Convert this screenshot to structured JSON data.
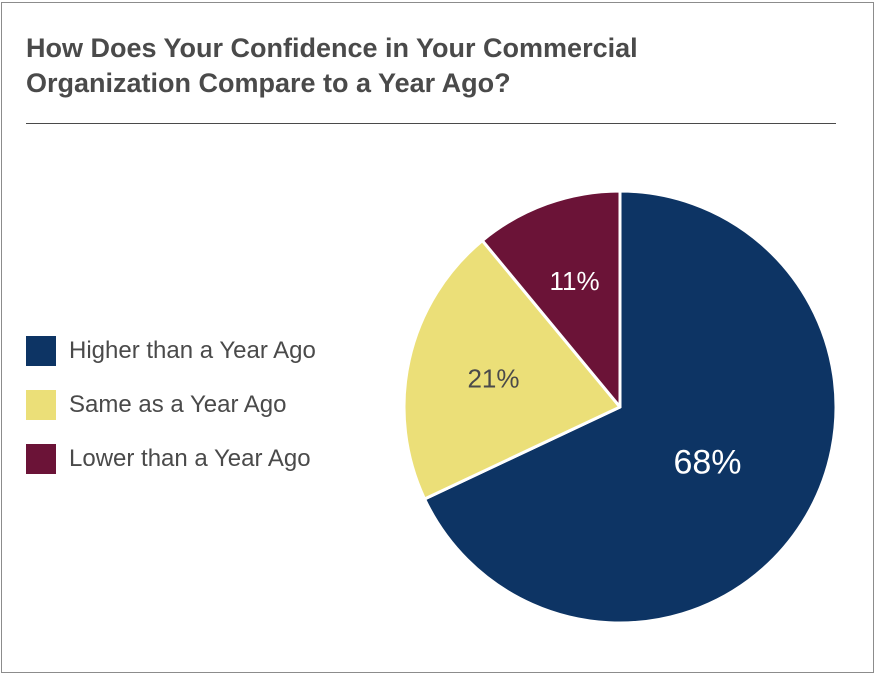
{
  "chart_data": {
    "type": "pie",
    "title": "How Does Your Confidence in Your Commercial Organization Compare to a Year Ago?",
    "slices": [
      {
        "label": "Higher than a Year Ago",
        "value": 68,
        "value_label": "68%",
        "color": "#0d3464",
        "label_color": "#ffffff"
      },
      {
        "label": "Same as a Year Ago",
        "value": 21,
        "value_label": "21%",
        "color": "#ebdf78",
        "label_color": "#4a4a4a"
      },
      {
        "label": "Lower than a Year Ago",
        "value": 11,
        "value_label": "11%",
        "color": "#6b1337",
        "label_color": "#ffffff"
      }
    ],
    "legend_position": "left"
  }
}
